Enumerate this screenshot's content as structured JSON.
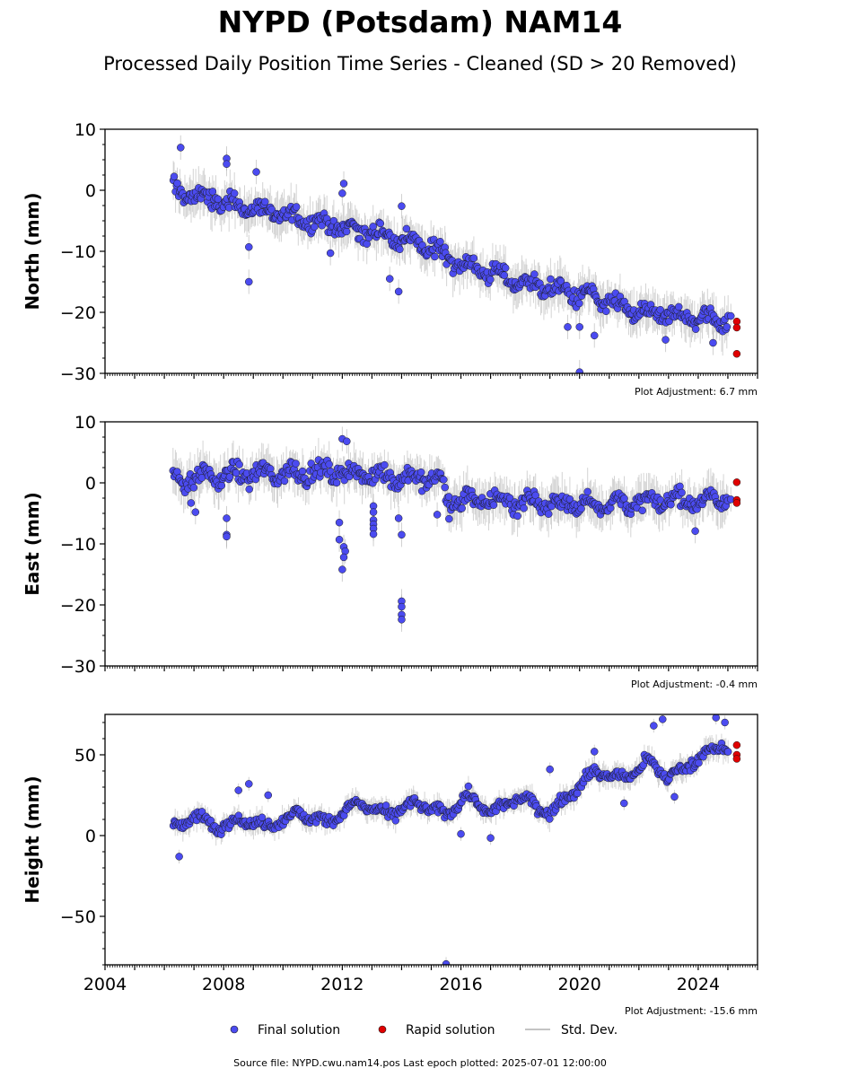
{
  "title": "NYPD (Potsdam) NAM14",
  "subtitle": "Processed Daily Position Time Series - Cleaned (SD > 20 Removed)",
  "source_text": "Source file: NYPD.cwu.nam14.pos  Last epoch plotted: 2025-07-01 12:00:00",
  "legend": {
    "final_label": "Final solution",
    "rapid_label": "Rapid solution",
    "std_label": "Std. Dev."
  },
  "colors": {
    "final": "#4b4bf0",
    "rapid": "#e00000",
    "std": "#b0b0b0",
    "marker_edge": "#1a1a1a"
  },
  "chart_data": [
    {
      "type": "scatter",
      "ylabel": "North (mm)",
      "xlim": [
        2004,
        2026
      ],
      "ylim": [
        -30,
        10
      ],
      "yticks": [
        -30,
        -20,
        -10,
        0,
        10
      ],
      "ytick_labels": [
        "−30",
        "−20",
        "−10",
        "0",
        "10"
      ],
      "adjustment": "Plot Adjustment: 6.7 mm",
      "trend": [
        [
          2006.3,
          0
        ],
        [
          2008.0,
          -2
        ],
        [
          2010.0,
          -4
        ],
        [
          2012.0,
          -6
        ],
        [
          2014.0,
          -8
        ],
        [
          2015.3,
          -10
        ],
        [
          2016.0,
          -12
        ],
        [
          2018.0,
          -15
        ],
        [
          2020.0,
          -17
        ],
        [
          2022.0,
          -20
        ],
        [
          2024.0,
          -21
        ],
        [
          2025.0,
          -21
        ]
      ],
      "outliers": [
        [
          2006.55,
          7.0
        ],
        [
          2008.1,
          5.2
        ],
        [
          2008.1,
          4.3
        ],
        [
          2009.1,
          3.0
        ],
        [
          2008.85,
          -9.3
        ],
        [
          2008.85,
          -15.0
        ],
        [
          2012.05,
          1.1
        ],
        [
          2012.0,
          -0.5
        ],
        [
          2011.6,
          -10.3
        ],
        [
          2013.9,
          -16.6
        ],
        [
          2013.6,
          -14.5
        ],
        [
          2014.0,
          -2.6
        ],
        [
          2019.6,
          -22.4
        ],
        [
          2020.0,
          -22.4
        ],
        [
          2020.5,
          -23.8
        ],
        [
          2020.0,
          -29.8
        ],
        [
          2022.9,
          -24.5
        ],
        [
          2024.5,
          -25.0
        ],
        [
          2025.1,
          -20.6
        ]
      ],
      "rapid": [
        [
          2025.3,
          -21.5
        ],
        [
          2025.3,
          -22.5
        ],
        [
          2025.3,
          -26.8
        ]
      ]
    },
    {
      "type": "scatter",
      "ylabel": "East (mm)",
      "xlim": [
        2004,
        2026
      ],
      "ylim": [
        -30,
        10
      ],
      "yticks": [
        -30,
        -20,
        -10,
        0,
        10
      ],
      "ytick_labels": [
        "−30",
        "−20",
        "−10",
        "0",
        "10"
      ],
      "adjustment": "Plot Adjustment: -0.4 mm",
      "trend": [
        [
          2006.3,
          0.5
        ],
        [
          2008.0,
          1.2
        ],
        [
          2010.0,
          1.6
        ],
        [
          2012.0,
          1.8
        ],
        [
          2014.0,
          0.8
        ],
        [
          2015.4,
          0.5
        ],
        [
          2015.5,
          -2.8
        ],
        [
          2018.0,
          -3.0
        ],
        [
          2020.0,
          -3.5
        ],
        [
          2022.0,
          -3.2
        ],
        [
          2024.0,
          -2.8
        ],
        [
          2025.0,
          -2.6
        ]
      ],
      "outliers": [
        [
          2012.0,
          7.2
        ],
        [
          2012.15,
          6.8
        ],
        [
          2006.9,
          -3.3
        ],
        [
          2007.05,
          -4.8
        ],
        [
          2008.1,
          -5.8
        ],
        [
          2008.1,
          -8.5
        ],
        [
          2008.1,
          -8.8
        ],
        [
          2011.9,
          -6.5
        ],
        [
          2011.9,
          -9.3
        ],
        [
          2012.05,
          -10.5
        ],
        [
          2012.1,
          -11.2
        ],
        [
          2012.05,
          -12.2
        ],
        [
          2012.0,
          -14.2
        ],
        [
          2013.05,
          -3.8
        ],
        [
          2013.05,
          -4.8
        ],
        [
          2013.05,
          -6.1
        ],
        [
          2013.05,
          -6.8
        ],
        [
          2013.05,
          -7.5
        ],
        [
          2013.05,
          -8.4
        ],
        [
          2013.9,
          -5.8
        ],
        [
          2014.0,
          -8.5
        ],
        [
          2014.0,
          -19.4
        ],
        [
          2014.0,
          -20.3
        ],
        [
          2014.0,
          -21.6
        ],
        [
          2014.0,
          -22.4
        ],
        [
          2015.2,
          -5.2
        ],
        [
          2015.6,
          -5.9
        ],
        [
          2023.9,
          -7.9
        ],
        [
          2025.1,
          -2.7
        ]
      ],
      "rapid": [
        [
          2025.3,
          0.1
        ],
        [
          2025.3,
          -2.8
        ],
        [
          2025.3,
          -3.3
        ]
      ]
    },
    {
      "type": "scatter",
      "ylabel": "Height (mm)",
      "xlim": [
        2004,
        2026
      ],
      "ylim": [
        -80,
        75
      ],
      "yticks": [
        -50,
        0,
        50
      ],
      "ytick_labels": [
        "−50",
        "0",
        "50"
      ],
      "xticks": [
        2004,
        2008,
        2012,
        2016,
        2020,
        2024
      ],
      "xtick_labels": [
        "2004",
        "2008",
        "2012",
        "2016",
        "2020",
        "2024"
      ],
      "adjustment": "Plot Adjustment: -15.6 mm",
      "trend": [
        [
          2006.3,
          5
        ],
        [
          2007.0,
          12
        ],
        [
          2007.8,
          5
        ],
        [
          2008.5,
          10
        ],
        [
          2009.5,
          6
        ],
        [
          2010.5,
          14
        ],
        [
          2011.5,
          8
        ],
        [
          2012.5,
          20
        ],
        [
          2013.5,
          13
        ],
        [
          2014.5,
          20
        ],
        [
          2015.5,
          13
        ],
        [
          2016.2,
          25
        ],
        [
          2017.0,
          14
        ],
        [
          2018.0,
          24
        ],
        [
          2019.0,
          14
        ],
        [
          2019.8,
          28
        ],
        [
          2020.5,
          40
        ],
        [
          2021.5,
          35
        ],
        [
          2022.3,
          46
        ],
        [
          2023.0,
          36
        ],
        [
          2024.0,
          48
        ],
        [
          2024.8,
          56
        ],
        [
          2025.0,
          52
        ]
      ],
      "outliers": [
        [
          2006.5,
          -13.0
        ],
        [
          2015.5,
          -79.5
        ],
        [
          2008.5,
          28.0
        ],
        [
          2008.85,
          32.0
        ],
        [
          2009.5,
          25.0
        ],
        [
          2019.0,
          41.0
        ],
        [
          2020.5,
          52.0
        ],
        [
          2022.5,
          68.0
        ],
        [
          2022.8,
          72.0
        ],
        [
          2024.6,
          73.0
        ],
        [
          2024.9,
          70.0
        ],
        [
          2021.5,
          20.0
        ],
        [
          2023.2,
          24.0
        ],
        [
          2017.0,
          -1.5
        ],
        [
          2016.0,
          1.0
        ]
      ],
      "rapid": [
        [
          2025.3,
          56.0
        ],
        [
          2025.3,
          50.0
        ],
        [
          2025.3,
          47.5
        ]
      ]
    }
  ]
}
